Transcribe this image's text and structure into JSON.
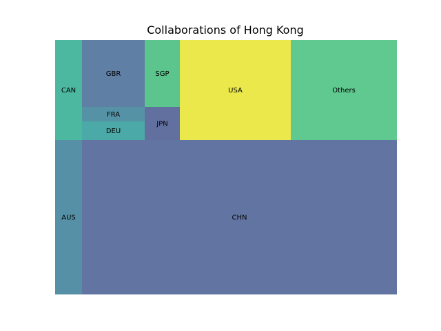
{
  "chart_data": {
    "type": "treemap",
    "title": "Collaborations of Hong Kong",
    "tiles": [
      {
        "label": "CAN",
        "color": "#4cb8a0"
      },
      {
        "label": "GBR",
        "color": "#5f7fa5"
      },
      {
        "label": "FRA",
        "color": "#5592a5"
      },
      {
        "label": "DEU",
        "color": "#4ba9a7"
      },
      {
        "label": "SGP",
        "color": "#5cc58d"
      },
      {
        "label": "JPN",
        "color": "#6270a0"
      },
      {
        "label": "USA",
        "color": "#eae84a"
      },
      {
        "label": "Others",
        "color": "#60c98f"
      },
      {
        "label": "AUS",
        "color": "#5690a6"
      },
      {
        "label": "CHN",
        "color": "#6275a2"
      }
    ]
  }
}
